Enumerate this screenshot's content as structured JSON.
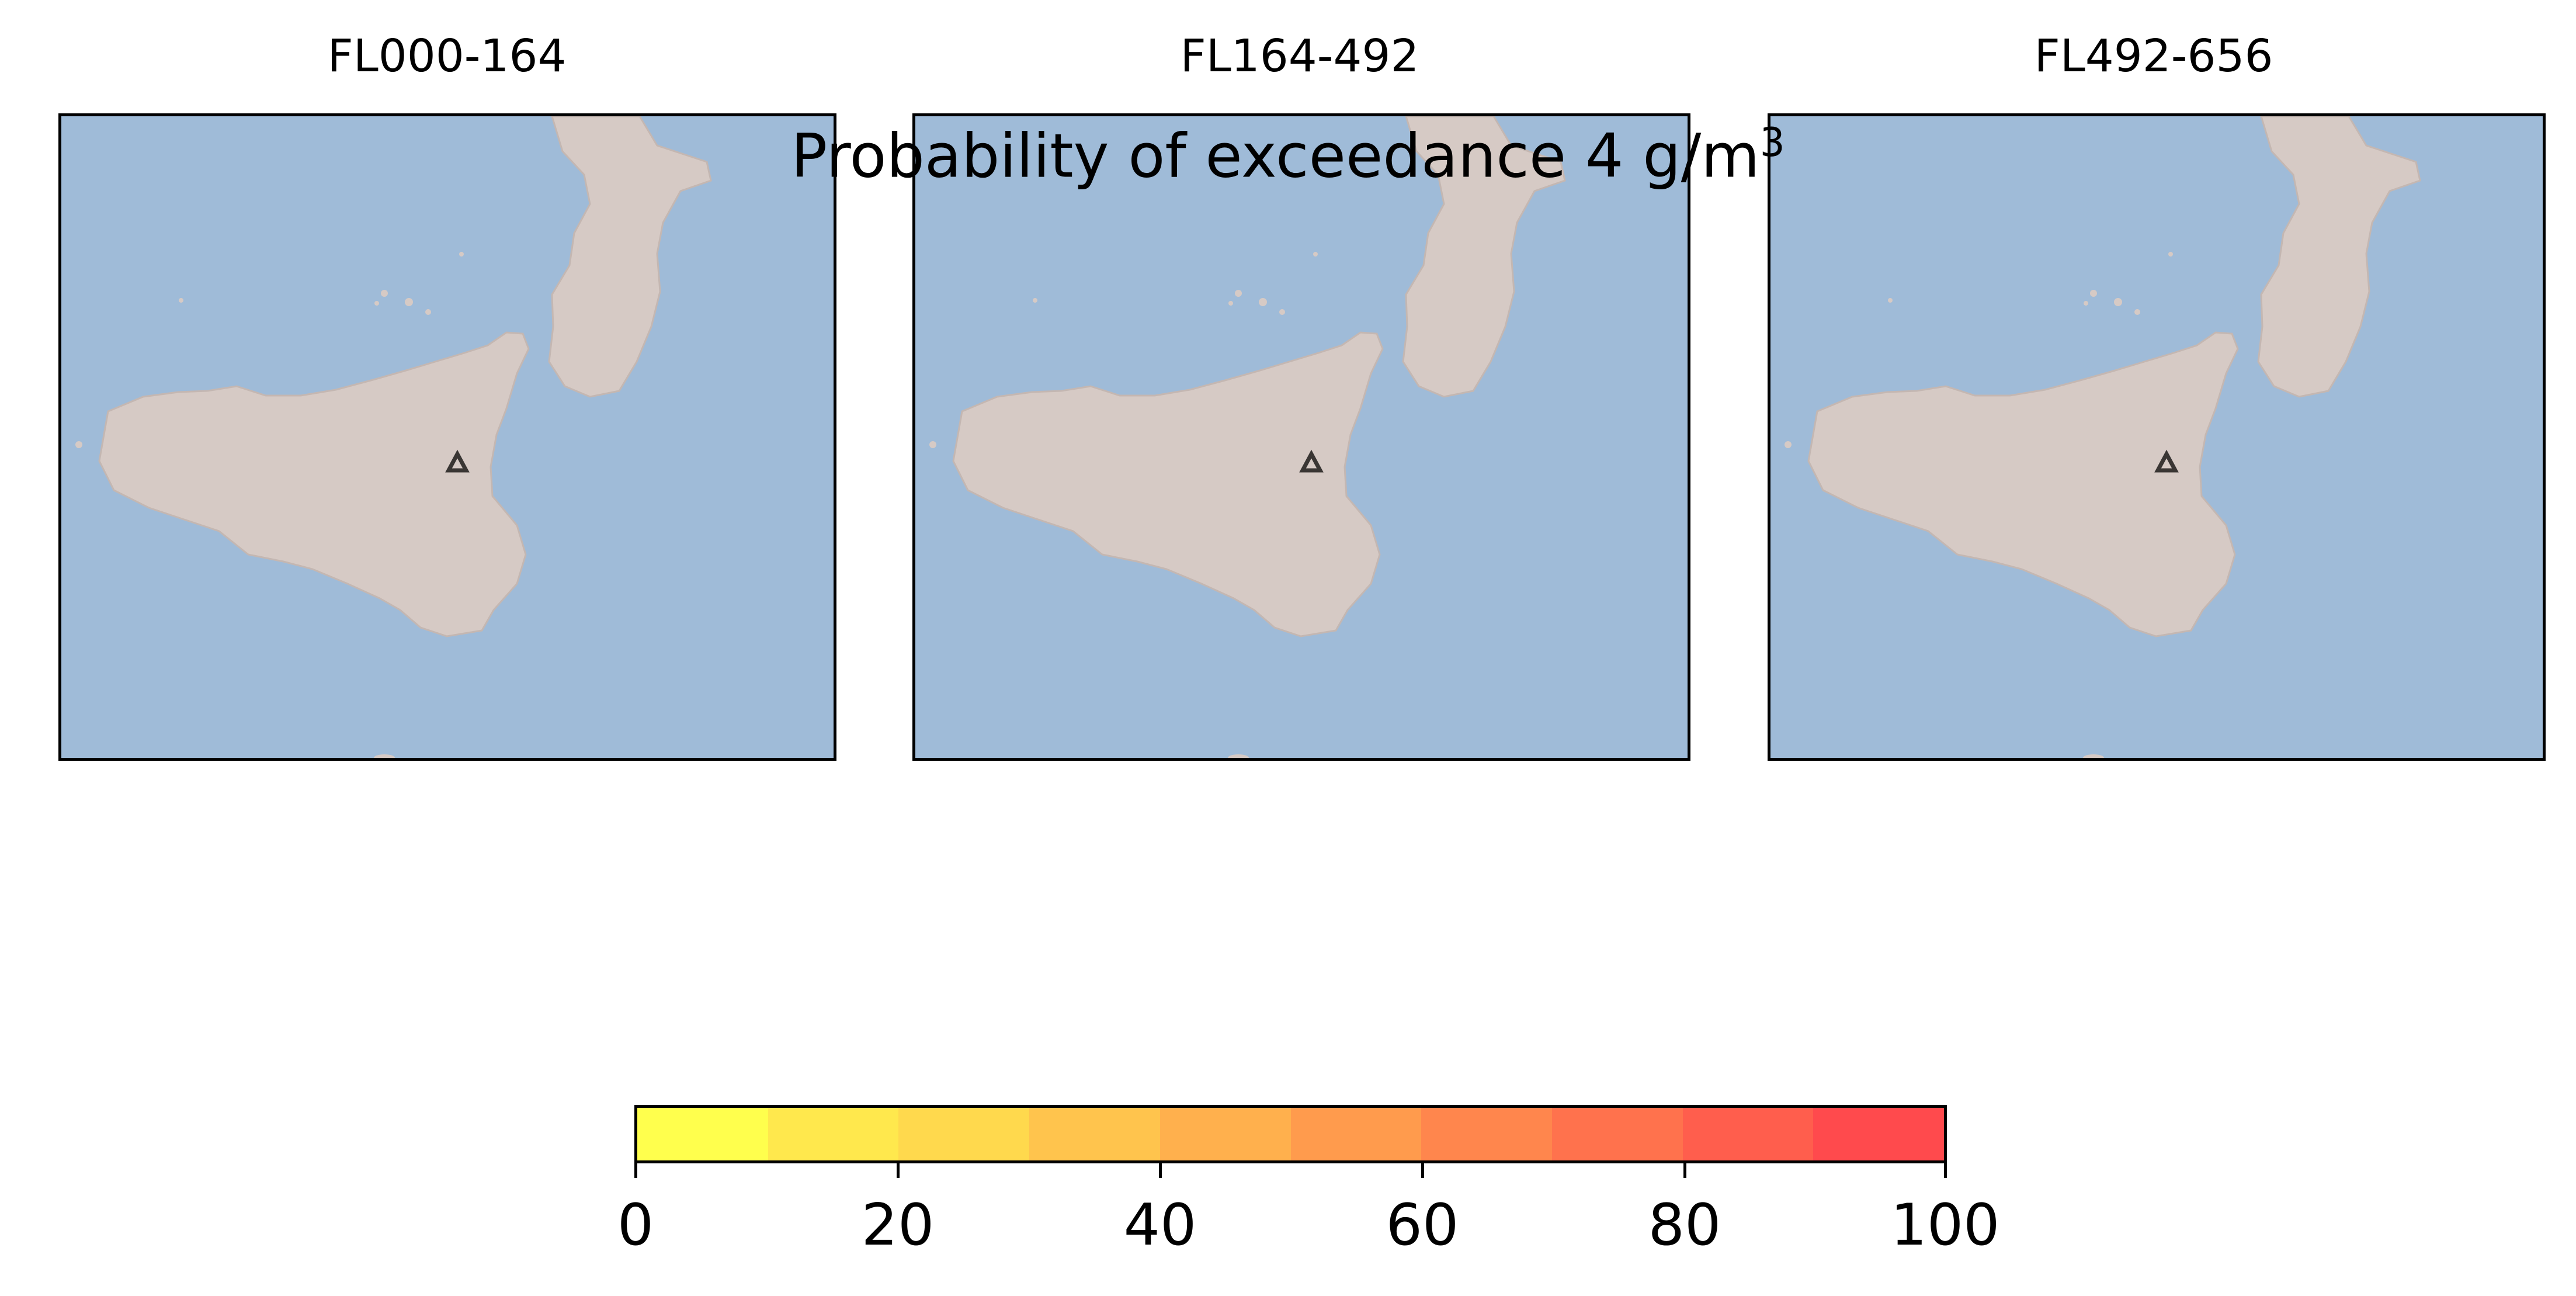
{
  "title": "Probability of exceedance 4 g/m",
  "title_superscript": "3",
  "panels": [
    {
      "title": "FL000-164"
    },
    {
      "title": "FL164-492"
    },
    {
      "title": "FL492-656"
    }
  ],
  "colors": {
    "sea": "#9fbbd8",
    "land": "#d6cac5",
    "volcano_marker": "#3a3634",
    "border": "#000000"
  },
  "colorbar": {
    "ticks": [
      "0",
      "20",
      "40",
      "60",
      "80",
      "100"
    ],
    "segment_colors": [
      "#ffff4d",
      "#ffe84d",
      "#ffd94d",
      "#ffc44d",
      "#ffb04d",
      "#ff9b4d",
      "#ff864d",
      "#ff724d",
      "#ff5e4d",
      "#ff4a4d"
    ]
  }
}
